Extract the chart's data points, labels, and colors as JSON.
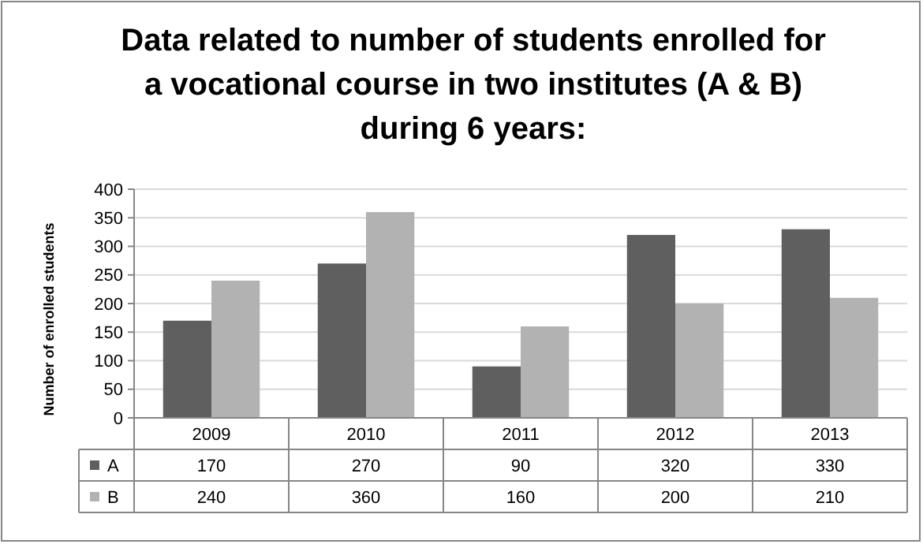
{
  "chart_data": {
    "type": "bar",
    "title": "Data related to number of students enrolled for a vocational course in two institutes (A & B) during 6 years:",
    "ylabel": "Number of enrolled students",
    "categories": [
      "2009",
      "2010",
      "2011",
      "2012",
      "2013"
    ],
    "series": [
      {
        "name": "A",
        "color": "#5f5f5f",
        "values": [
          170,
          270,
          90,
          320,
          330
        ]
      },
      {
        "name": "B",
        "color": "#b2b2b2",
        "values": [
          240,
          360,
          160,
          200,
          210
        ]
      }
    ],
    "ylim": [
      0,
      400
    ],
    "yticks": [
      0,
      50,
      100,
      150,
      200,
      250,
      300,
      350,
      400
    ],
    "grid": "y",
    "data_labels": true,
    "legend": "bottom"
  }
}
